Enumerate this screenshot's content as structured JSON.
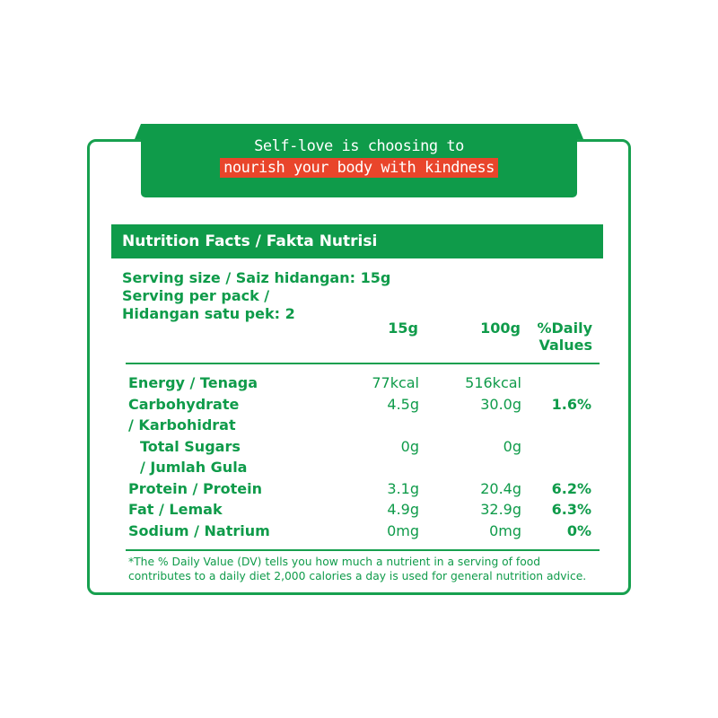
{
  "banner": {
    "line1": "Self-love is choosing to",
    "line2": "nourish your body with kindness"
  },
  "title": "Nutrition Facts  / Fakta Nutrisi",
  "serving": {
    "line1": "Serving size / Saiz hidangan: 15g",
    "line2": "Serving per pack /",
    "line3": "Hidangan satu pek: 2"
  },
  "columns": {
    "c1": "15g",
    "c2": "100g",
    "c3a": "%Daily",
    "c3b": "Values"
  },
  "rows": [
    {
      "label": "Energy / Tenaga",
      "v1": "77kcal",
      "v2": "516kcal",
      "dv": ""
    },
    {
      "label": "Carbohydrate",
      "v1": "4.5g",
      "v2": "30.0g",
      "dv": "1.6%"
    },
    {
      "label": "/ Karbohidrat",
      "v1": "",
      "v2": "",
      "dv": ""
    },
    {
      "label": "  Total Sugars",
      "v1": "0g",
      "v2": "0g",
      "dv": ""
    },
    {
      "label": "  / Jumlah Gula",
      "v1": "",
      "v2": "",
      "dv": ""
    },
    {
      "label": "Protein / Protein",
      "v1": "3.1g",
      "v2": "20.4g",
      "dv": "6.2%"
    },
    {
      "label": "Fat / Lemak",
      "v1": "4.9g",
      "v2": "32.9g",
      "dv": "6.3%"
    },
    {
      "label": "Sodium / Natrium",
      "v1": "0mg",
      "v2": "0mg",
      "dv": "0%"
    }
  ],
  "footnote": {
    "line1": "*The % Daily Value (DV) tells you how much a nutrient in a serving of food",
    "line2": "contributes to a daily diet 2,000 calories a day is used for general nutrition advice."
  },
  "colors": {
    "green": "#0f9b4a",
    "red": "#e9452b"
  }
}
